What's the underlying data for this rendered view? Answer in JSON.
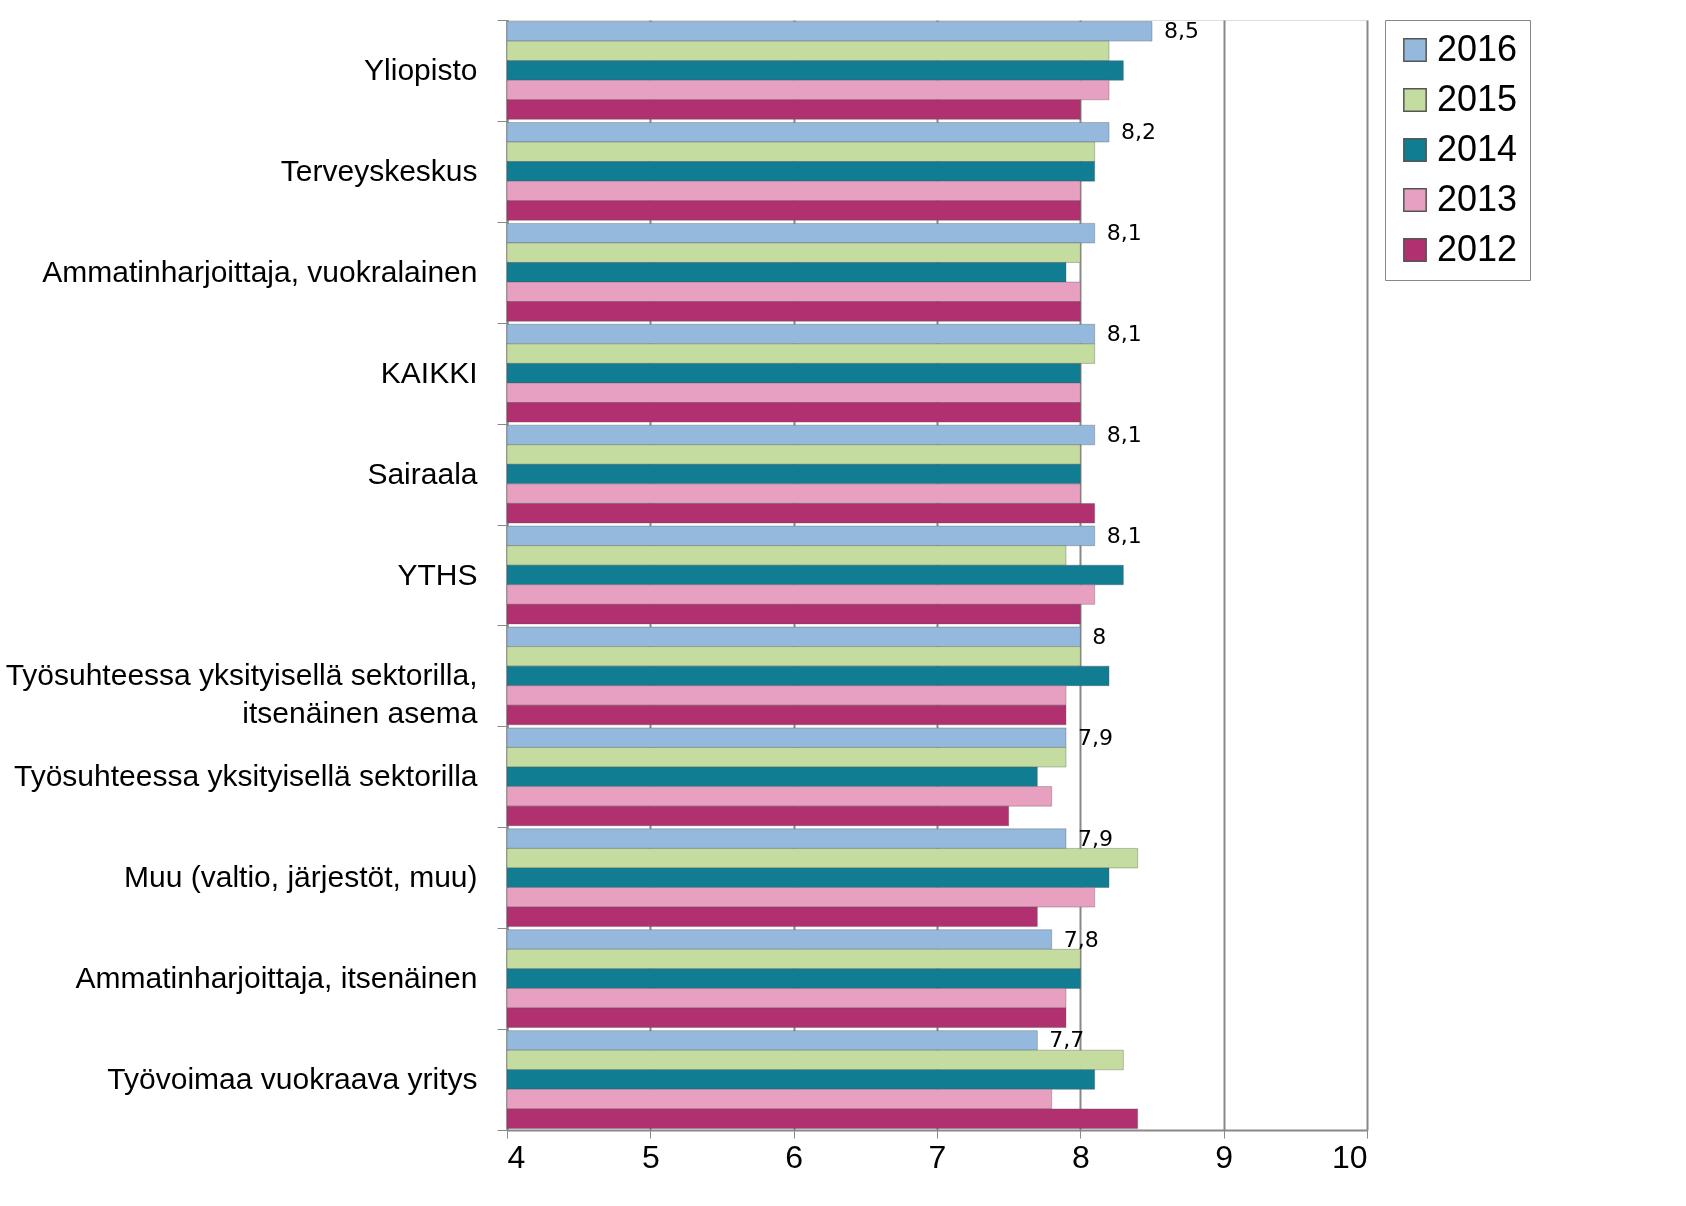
{
  "chart_data": {
    "type": "bar",
    "orientation": "horizontal",
    "categories": [
      "Yliopisto",
      "Terveyskeskus",
      "Ammatinharjoittaja, vuokralainen",
      "KAIKKI",
      "Sairaala",
      "YTHS",
      "Työsuhteessa yksityisellä sektorilla,\nitsenäinen asema",
      "Työsuhteessa yksityisellä sektorilla",
      "Muu (valtio, järjestöt, muu)",
      "Ammatinharjoittaja, itsenäinen",
      "Työvoimaa vuokraava yritys"
    ],
    "series": [
      {
        "name": "2016",
        "color": "#95b9dd",
        "values": [
          8.5,
          8.2,
          8.1,
          8.1,
          8.1,
          8.1,
          8.0,
          7.9,
          7.9,
          7.8,
          7.7
        ],
        "value_labels": [
          "8,5",
          "8,2",
          "8,1",
          "8,1",
          "8,1",
          "8,1",
          "8",
          "7,9",
          "7,9",
          "7,8",
          "7,7"
        ]
      },
      {
        "name": "2015",
        "color": "#c4dca0",
        "values": [
          8.2,
          8.1,
          8.0,
          8.1,
          8.0,
          7.9,
          8.0,
          7.9,
          8.4,
          8.0,
          8.3
        ]
      },
      {
        "name": "2014",
        "color": "#117d93",
        "values": [
          8.3,
          8.1,
          7.9,
          8.0,
          8.0,
          8.3,
          8.2,
          7.7,
          8.2,
          8.0,
          8.1
        ]
      },
      {
        "name": "2013",
        "color": "#e8a0c0",
        "values": [
          8.2,
          8.0,
          8.0,
          8.0,
          8.0,
          8.1,
          7.9,
          7.8,
          8.1,
          7.9,
          7.8
        ]
      },
      {
        "name": "2012",
        "color": "#b03070",
        "values": [
          8.0,
          8.0,
          8.0,
          8.0,
          8.1,
          8.0,
          7.9,
          7.5,
          7.7,
          7.9,
          8.4
        ]
      }
    ],
    "xlim": [
      4,
      10
    ],
    "xticks": [
      4,
      5,
      6,
      7,
      8,
      9,
      10
    ],
    "grid": "x",
    "legend": "top right"
  }
}
